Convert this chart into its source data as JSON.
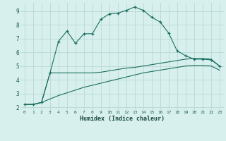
{
  "xlabel": "Humidex (Indice chaleur)",
  "bg_color": "#d8f0ed",
  "grid_color": "#b8d8d4",
  "line_color": "#1a6e60",
  "xlim": [
    -0.5,
    23.5
  ],
  "ylim": [
    1.8,
    9.6
  ],
  "xticks": [
    0,
    1,
    2,
    3,
    4,
    5,
    6,
    7,
    8,
    9,
    10,
    11,
    12,
    13,
    14,
    15,
    16,
    17,
    18,
    19,
    20,
    21,
    22,
    23
  ],
  "yticks": [
    2,
    3,
    4,
    5,
    6,
    7,
    8,
    9
  ],
  "line1_x": [
    0,
    1,
    2,
    3,
    4,
    5,
    6,
    7,
    8,
    9,
    10,
    11,
    12,
    13,
    14,
    15,
    16,
    17,
    18,
    19,
    20,
    21,
    22,
    23
  ],
  "line1_y": [
    2.2,
    2.2,
    2.35,
    4.5,
    6.8,
    7.55,
    6.65,
    7.35,
    7.35,
    8.4,
    8.8,
    8.85,
    9.05,
    9.3,
    9.05,
    8.55,
    8.2,
    7.4,
    6.1,
    5.75,
    5.5,
    5.5,
    5.45,
    5.0
  ],
  "line2_x": [
    0,
    1,
    2,
    3,
    4,
    5,
    6,
    7,
    8,
    9,
    10,
    11,
    12,
    13,
    14,
    15,
    16,
    17,
    18,
    19,
    20,
    21,
    22,
    23
  ],
  "line2_y": [
    2.2,
    2.2,
    2.35,
    4.5,
    4.5,
    4.5,
    4.5,
    4.5,
    4.5,
    4.55,
    4.65,
    4.75,
    4.85,
    4.9,
    5.0,
    5.1,
    5.2,
    5.3,
    5.4,
    5.5,
    5.55,
    5.55,
    5.5,
    5.0
  ],
  "line3_x": [
    0,
    1,
    2,
    3,
    4,
    5,
    6,
    7,
    8,
    9,
    10,
    11,
    12,
    13,
    14,
    15,
    16,
    17,
    18,
    19,
    20,
    21,
    22,
    23
  ],
  "line3_y": [
    2.2,
    2.2,
    2.35,
    2.6,
    2.85,
    3.05,
    3.25,
    3.45,
    3.6,
    3.75,
    3.9,
    4.05,
    4.2,
    4.35,
    4.5,
    4.6,
    4.7,
    4.8,
    4.9,
    5.0,
    5.05,
    5.05,
    5.0,
    4.7
  ]
}
